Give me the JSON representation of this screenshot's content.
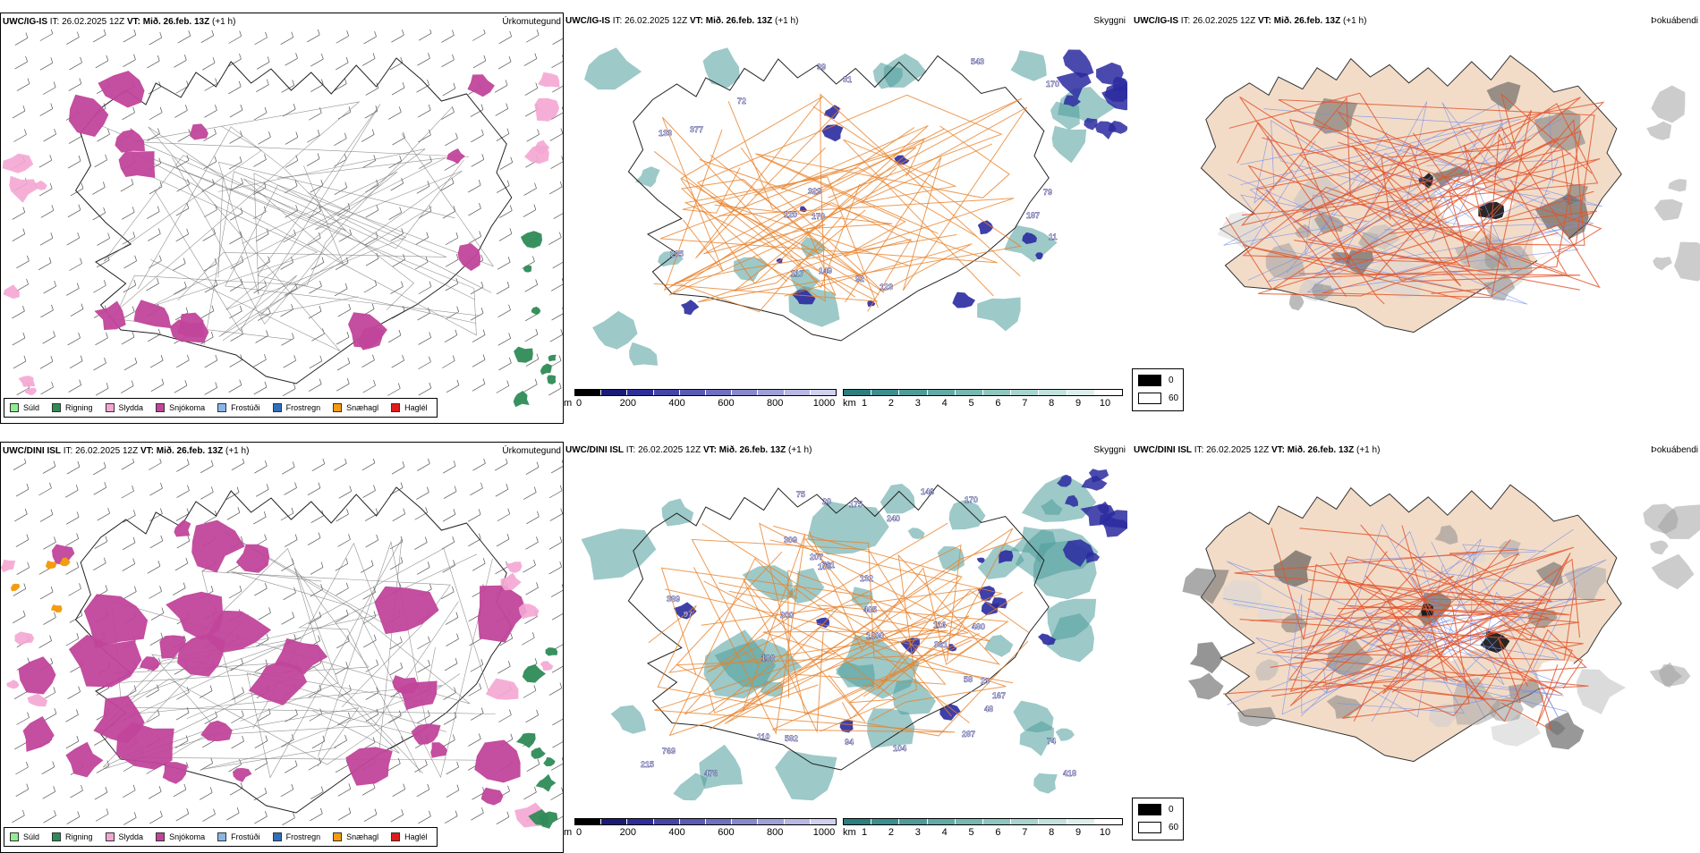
{
  "rows": [
    {
      "header": {
        "model": "UWC/IG-IS",
        "it_label": "IT:",
        "it_value": "26.02.2025 12Z",
        "vt_label": "VT:",
        "vt_value": "Mið. 26.feb. 13Z",
        "offset": "(+1 h)"
      },
      "precip_title": "Úrkomutegund",
      "vis_title": "Skyggni",
      "dew_title": "Þokuábendi",
      "vis_numbers": [
        "170",
        "205",
        "92",
        "39",
        "120",
        "133",
        "31",
        "11",
        "149",
        "170",
        "377",
        "187",
        "123",
        "117",
        "543",
        "72",
        "79",
        "329"
      ]
    },
    {
      "header": {
        "model": "UWC/DINI ISL",
        "it_label": "IT:",
        "it_value": "26.02.2025 12Z",
        "vt_label": "VT:",
        "vt_value": "Mið. 26.feb. 13Z",
        "offset": "(+1 h)"
      },
      "precip_title": "Úrkomutegund",
      "vis_title": "Skyggni",
      "dew_title": "Þokuábendi",
      "vis_numbers": [
        "309",
        "582",
        "110",
        "132",
        "23",
        "116",
        "48",
        "207",
        "215",
        "94",
        "104",
        "58",
        "418",
        "146",
        "769",
        "405",
        "74",
        "20",
        "1200",
        "287",
        "389",
        "108",
        "781",
        "108",
        "476",
        "200",
        "170",
        "175",
        "167",
        "75",
        "240",
        "97",
        "361",
        "480"
      ]
    }
  ],
  "precip_legend": [
    {
      "label": "Súld",
      "color": "#90ee90"
    },
    {
      "label": "Rigning",
      "color": "#2e8b57"
    },
    {
      "label": "Slydda",
      "color": "#f4a6d3"
    },
    {
      "label": "Snjókoma",
      "color": "#c1449a"
    },
    {
      "label": "Frostúði",
      "color": "#87b7e8"
    },
    {
      "label": "Frostregn",
      "color": "#2f6fba"
    },
    {
      "label": "Snæhagl",
      "color": "#f39c12"
    },
    {
      "label": "Haglél",
      "color": "#e01b1b"
    }
  ],
  "cloud_scale": {
    "unit": "m",
    "ticks": [
      "0",
      "200",
      "400",
      "600",
      "800",
      "1000"
    ],
    "colors": [
      "#000000",
      "#1a1a7a",
      "#2e2e9a",
      "#4545a8",
      "#5a5ab5",
      "#7070c0",
      "#8888cc",
      "#a0a0d8",
      "#b8b8e4",
      "#d0d0ef"
    ]
  },
  "vis_scale": {
    "unit": "km",
    "ticks": [
      "1",
      "2",
      "3",
      "4",
      "5",
      "6",
      "7",
      "8",
      "9",
      "10"
    ],
    "colors": [
      "#2b7f7f",
      "#3b8f8f",
      "#4d9c9a",
      "#62aaa6",
      "#78b8b3",
      "#8fc6c0",
      "#a8d4cf",
      "#c2e2de",
      "#dcefec",
      "#ffffff"
    ]
  },
  "fog_legend": [
    {
      "label": "0",
      "color": "#000000"
    },
    {
      "label": "60",
      "color": "#ffffff"
    }
  ],
  "colors": {
    "land": "#f2dcc8",
    "roads": "#e2542a",
    "rivers": "#7a8fe8",
    "vis_roads": "#e8822a",
    "snow": "#c1449a",
    "rain": "#2e8b57",
    "sleet": "#f4a6d3",
    "cloud": "#2a2aa0",
    "vis": "#4d9c9a"
  }
}
